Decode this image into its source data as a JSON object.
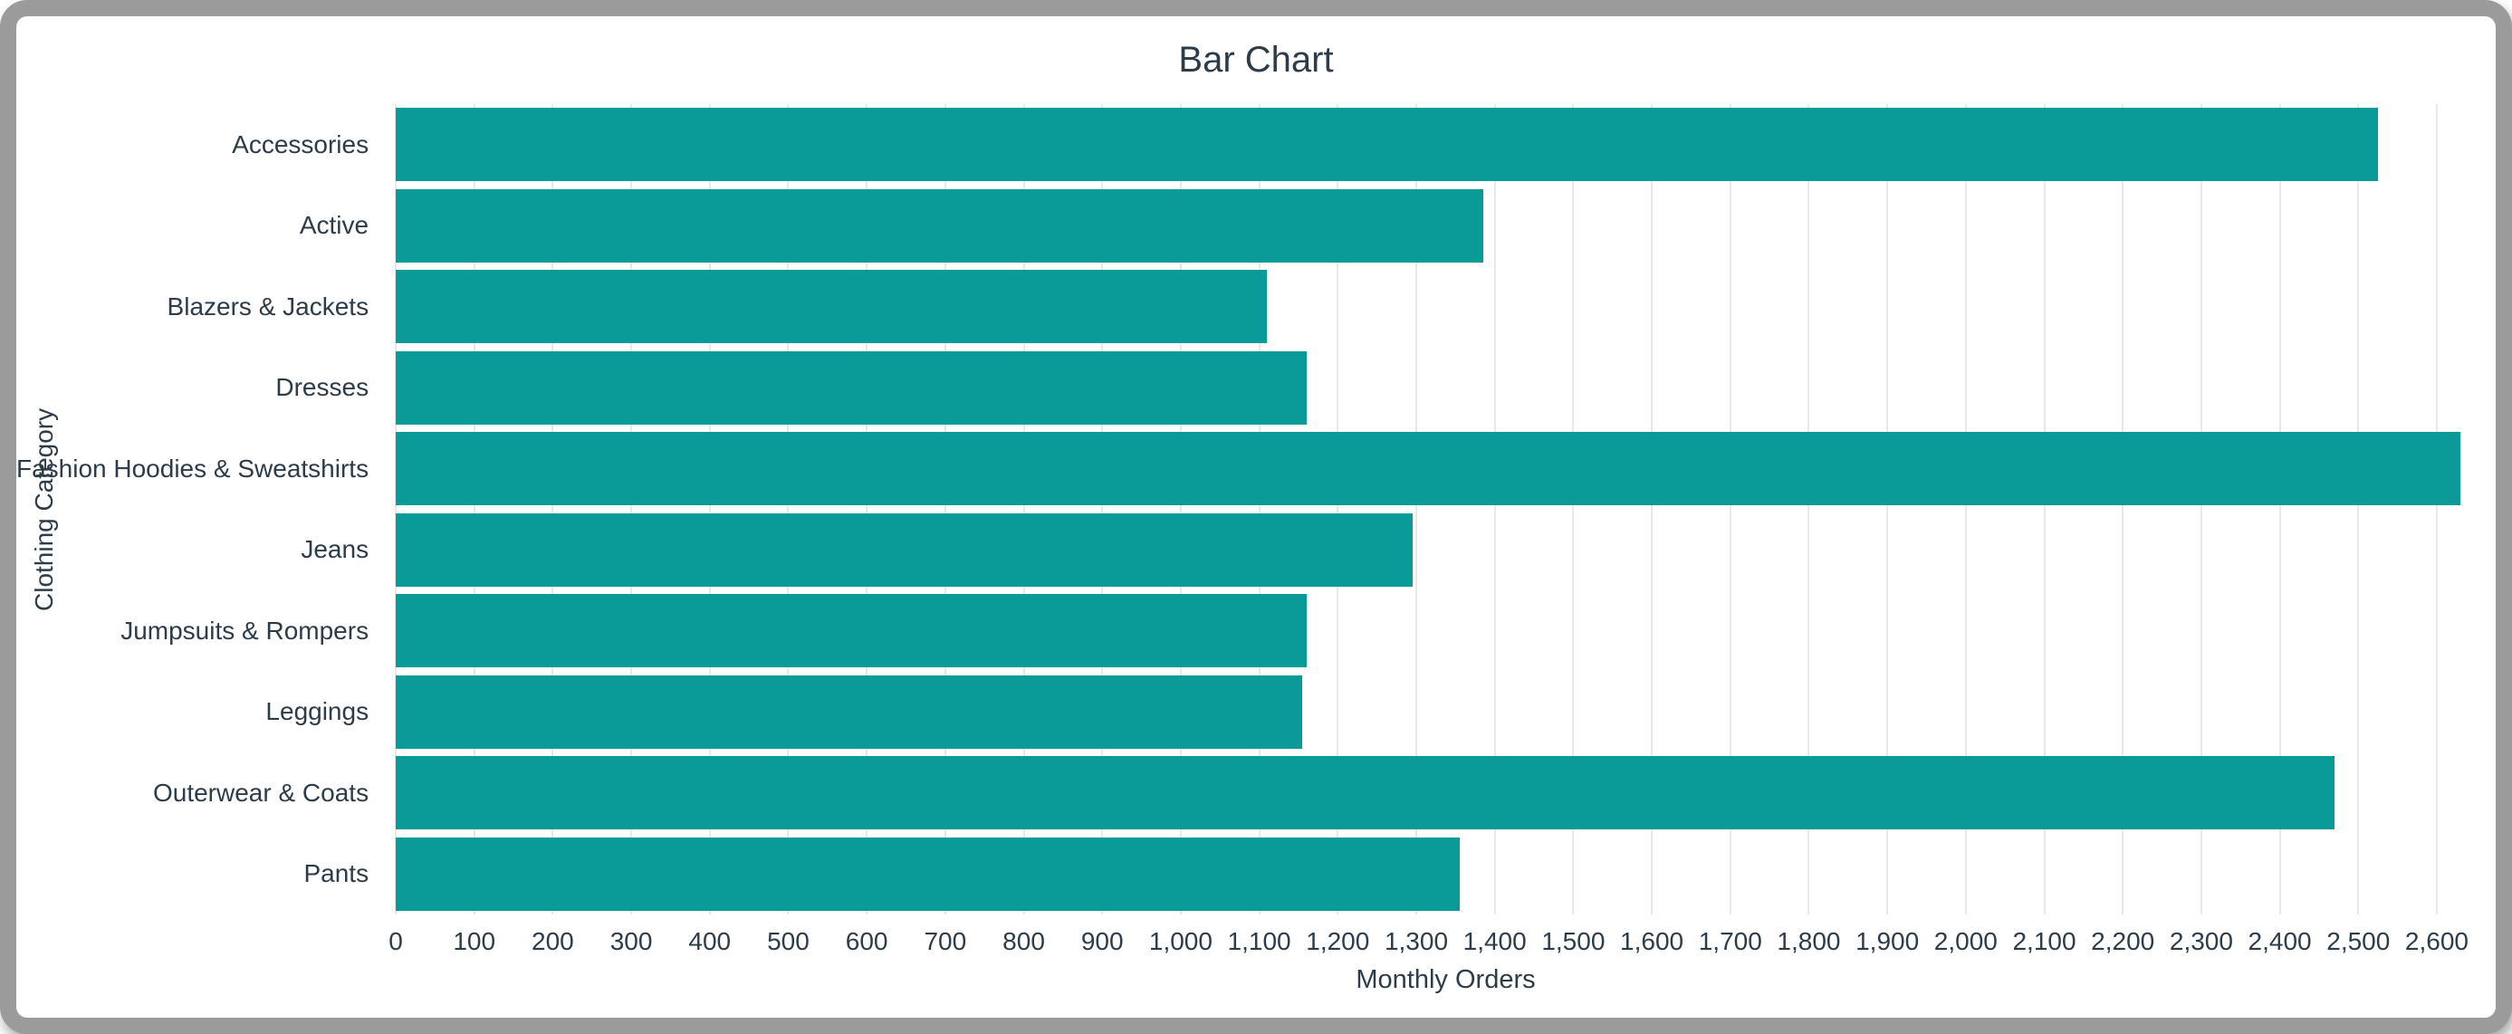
{
  "window": {
    "frame_color": "#9b9b9b",
    "background": "#ffffff"
  },
  "chart_data": {
    "type": "bar",
    "orientation": "horizontal",
    "title": "Bar Chart",
    "xlabel": "Monthly Orders",
    "ylabel": "Clothing Category",
    "categories": [
      "Accessories",
      "Active",
      "Blazers & Jackets",
      "Dresses",
      "Fashion Hoodies & Sweatshirts",
      "Jeans",
      "Jumpsuits & Rompers",
      "Leggings",
      "Outerwear & Coats",
      "Pants"
    ],
    "values": [
      2525,
      1385,
      1110,
      1160,
      2630,
      1295,
      1160,
      1155,
      2470,
      1355
    ],
    "xlim": [
      0,
      2675
    ],
    "xticks": {
      "start": 0,
      "end": 2600,
      "step": 100
    },
    "grid": "vertical",
    "legend": "none",
    "colors": {
      "bar": "#0a9a97",
      "gridline": "#e8e8e8",
      "text": "#2d3c49"
    }
  }
}
